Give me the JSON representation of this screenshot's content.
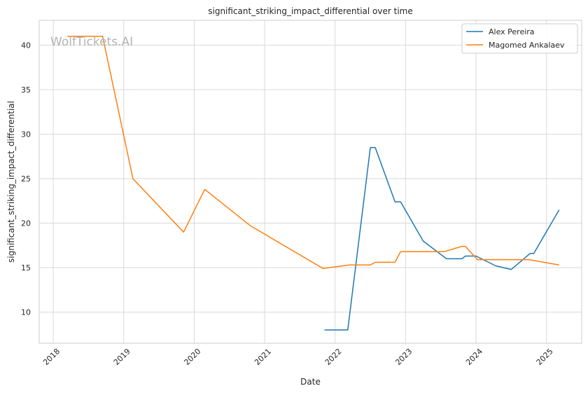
{
  "chart_data": {
    "type": "line",
    "title": "significant_striking_impact_differential over time",
    "xlabel": "Date",
    "ylabel": "significant_striking_impact_differential",
    "watermark": "WolfTickets.AI",
    "xlim": [
      2017.8,
      2025.5
    ],
    "ylim": [
      6.5,
      42.8
    ],
    "x_ticks": [
      2018,
      2019,
      2020,
      2021,
      2022,
      2023,
      2024,
      2025
    ],
    "y_ticks": [
      10,
      15,
      20,
      25,
      30,
      35,
      40
    ],
    "grid": true,
    "legend_position": "top-right",
    "series": [
      {
        "name": "Alex Pereira",
        "color": "#1f77b4",
        "x": [
          2021.85,
          2022.18,
          2022.5,
          2022.57,
          2022.85,
          2022.93,
          2023.25,
          2023.58,
          2023.8,
          2023.85,
          2024.0,
          2024.28,
          2024.5,
          2024.77,
          2024.82,
          2025.18
        ],
        "y": [
          8.0,
          8.0,
          28.5,
          28.5,
          22.4,
          22.4,
          18.0,
          16.0,
          16.0,
          16.3,
          16.3,
          15.2,
          14.8,
          16.6,
          16.6,
          21.5
        ]
      },
      {
        "name": "Magomed Ankalaev",
        "color": "#ff7f0e",
        "x": [
          2018.2,
          2018.7,
          2019.13,
          2019.85,
          2020.15,
          2020.8,
          2021.83,
          2022.2,
          2022.5,
          2022.57,
          2022.85,
          2022.93,
          2023.55,
          2023.8,
          2023.85,
          2024.02,
          2024.75,
          2025.18
        ],
        "y": [
          41.0,
          41.0,
          25.0,
          19.0,
          23.8,
          19.7,
          14.9,
          15.3,
          15.3,
          15.6,
          15.6,
          16.8,
          16.8,
          17.4,
          17.4,
          15.9,
          15.9,
          15.3
        ]
      }
    ]
  }
}
